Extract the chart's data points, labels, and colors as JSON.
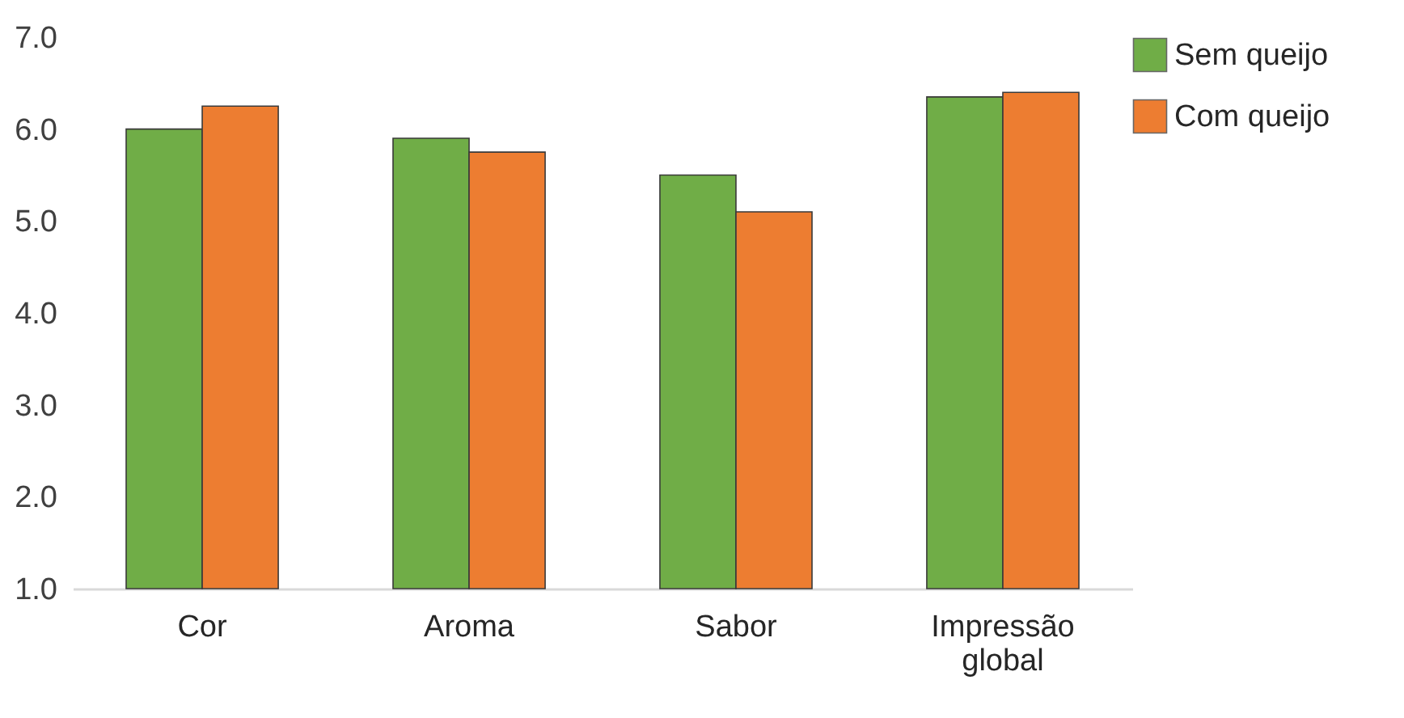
{
  "chart_data": {
    "type": "bar",
    "categories": [
      "Cor",
      "Aroma",
      "Sabor",
      "Impressão global"
    ],
    "series": [
      {
        "name": "Sem queijo",
        "color": "#70ad47",
        "values": [
          6.0,
          5.9,
          5.5,
          6.35
        ]
      },
      {
        "name": "Com queijo",
        "color": "#ed7d31",
        "values": [
          6.25,
          5.75,
          5.1,
          6.4
        ]
      }
    ],
    "ylim": [
      1,
      7
    ],
    "yticks": [
      {
        "value": 1,
        "label": "1.0"
      },
      {
        "value": 2,
        "label": "2.0"
      },
      {
        "value": 3,
        "label": "3.0"
      },
      {
        "value": 4,
        "label": "4.0"
      },
      {
        "value": 5,
        "label": "5.0"
      },
      {
        "value": 6,
        "label": "6.0"
      },
      {
        "value": 7,
        "label": "7.0"
      }
    ],
    "grid": false,
    "legend": "right"
  }
}
